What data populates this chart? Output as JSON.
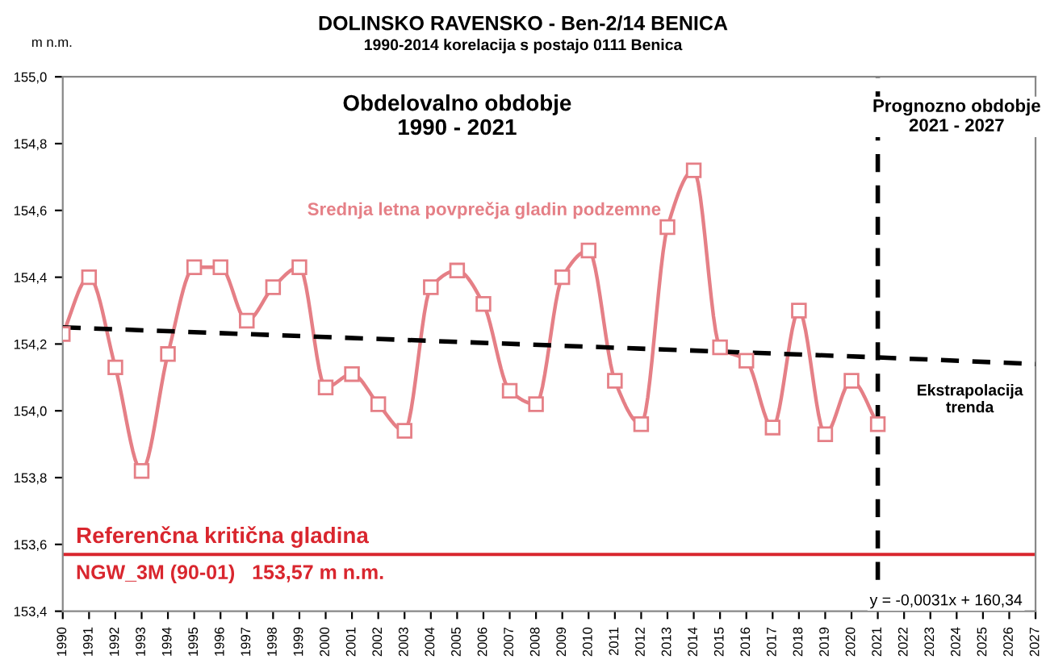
{
  "chart_data": {
    "type": "line",
    "title": "DOLINSKO RAVENSKO - Ben-2/14 BENICA",
    "subtitle": "1990-2014 korelacija s postajo 0111 Benica",
    "ylabel": "m n.m.",
    "series": [
      {
        "name": "Srednja letna povprečja gladin podzemne",
        "color": "#e57f86",
        "marker": "square",
        "line_style": "solid",
        "x": [
          1990,
          1991,
          1992,
          1993,
          1994,
          1995,
          1996,
          1997,
          1998,
          1999,
          2000,
          2001,
          2002,
          2003,
          2004,
          2005,
          2006,
          2007,
          2008,
          2009,
          2010,
          2011,
          2012,
          2013,
          2014,
          2015,
          2016,
          2017,
          2018,
          2019,
          2020,
          2021
        ],
        "values": [
          154.23,
          154.4,
          154.13,
          153.82,
          154.17,
          154.43,
          154.43,
          154.27,
          154.37,
          154.43,
          154.07,
          154.11,
          154.02,
          153.94,
          154.37,
          154.42,
          154.32,
          154.06,
          154.02,
          154.4,
          154.48,
          154.09,
          153.96,
          154.55,
          154.72,
          154.19,
          154.15,
          153.95,
          154.3,
          153.93,
          154.09,
          153.96
        ]
      },
      {
        "color": "#000000",
        "marker": "none",
        "line_style": "dashed",
        "x": [
          1990,
          2021,
          2027
        ],
        "values": [
          154.25,
          154.16,
          154.14
        ]
      }
    ],
    "xlim": [
      1990,
      2027
    ],
    "xticks": [
      1990,
      1991,
      1992,
      1993,
      1994,
      1995,
      1996,
      1997,
      1998,
      1999,
      2000,
      2001,
      2002,
      2003,
      2004,
      2005,
      2006,
      2007,
      2008,
      2009,
      2010,
      2011,
      2012,
      2013,
      2014,
      2015,
      2016,
      2017,
      2018,
      2019,
      2020,
      2021,
      2022,
      2023,
      2024,
      2025,
      2026,
      2027
    ],
    "ylim": [
      153.4,
      155.0
    ],
    "yticks": [
      {
        "value": 153.4,
        "label": "153,4"
      },
      {
        "value": 153.6,
        "label": "153,6"
      },
      {
        "value": 153.8,
        "label": "153,8"
      },
      {
        "value": 154.0,
        "label": "154,0"
      },
      {
        "value": 154.2,
        "label": "154,2"
      },
      {
        "value": 154.4,
        "label": "154,4"
      },
      {
        "value": 154.6,
        "label": "154,6"
      },
      {
        "value": 154.8,
        "label": "154,8"
      },
      {
        "value": 155.0,
        "label": "155,0"
      }
    ],
    "ref_lines": [
      {
        "axis": "y",
        "value": 153.57,
        "label": "Referenčna kritična gladina",
        "color": "#d9262e",
        "line_style": "solid"
      },
      {
        "axis": "x",
        "value": 2021,
        "color": "#000000",
        "line_style": "dashed"
      }
    ],
    "annotations": [
      "Obdelovalno obdobje\n1990 - 2021",
      "Prognozno obdobje\n2021 - 2027",
      {
        "text": "Ekstrapolacija\ntrenda",
        "x": 2024.5,
        "y": 154.14
      },
      {
        "text": "NGW_3M (90-01)   153,57 m n.m.",
        "x": 1990.5,
        "y": 153.57
      },
      "y = -0,0031x + 160,34"
    ],
    "grid": false,
    "legend": false
  }
}
